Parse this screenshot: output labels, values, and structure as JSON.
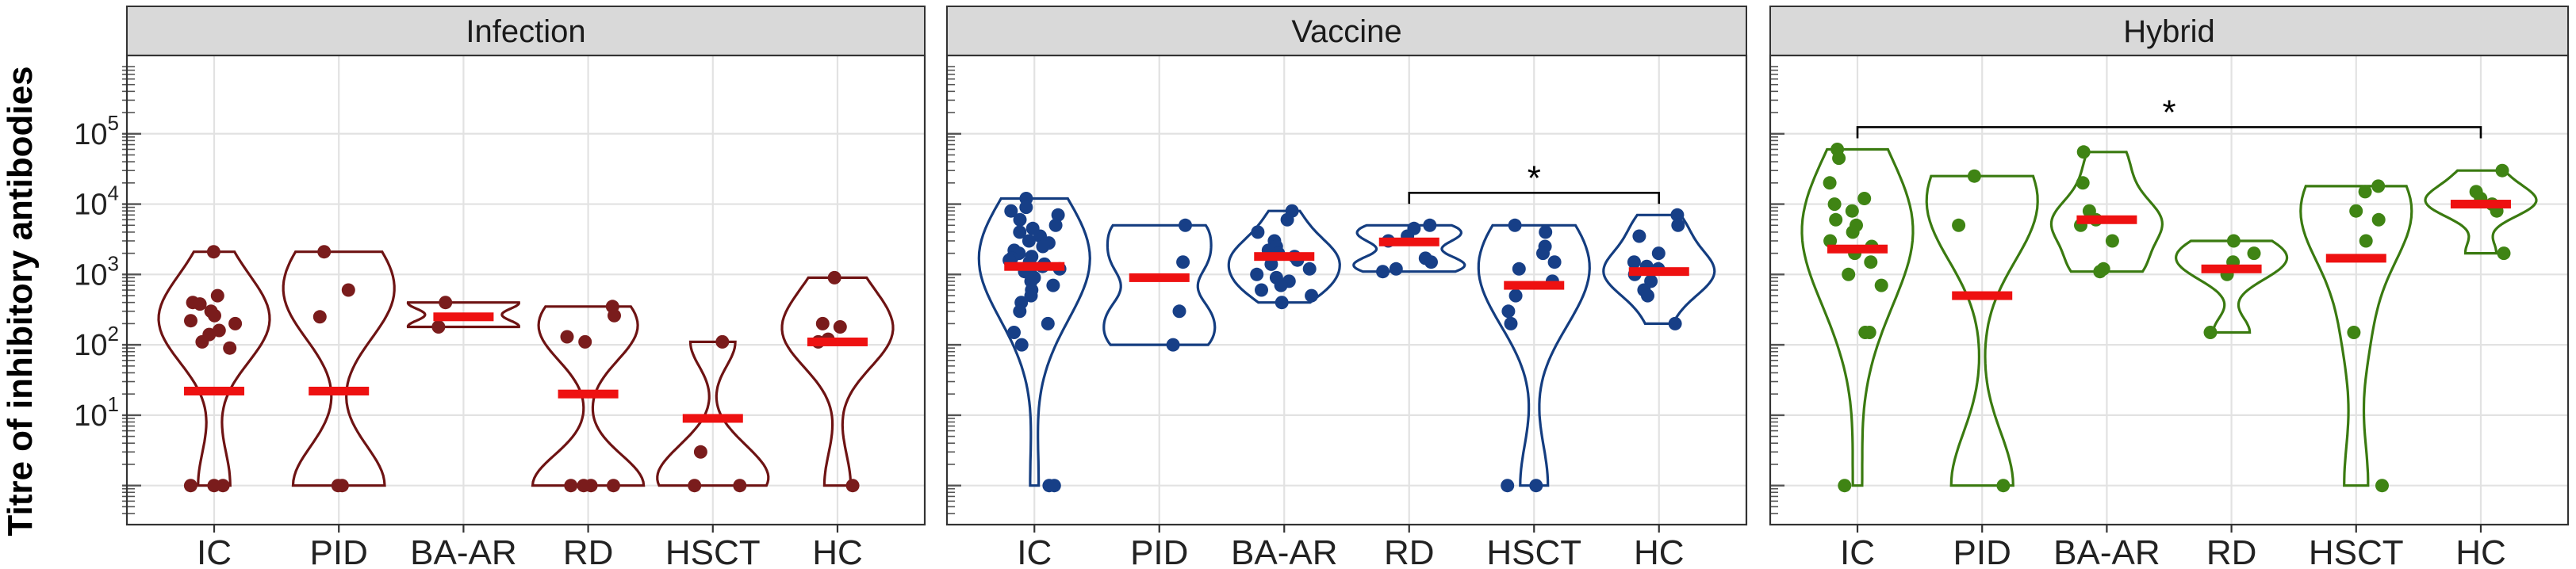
{
  "chart_data": {
    "type": "violin",
    "ylabel": "Titre of inhibitory antibodies",
    "yscale": "log10",
    "ylim": [
      0.4,
      1000000
    ],
    "yticks": [
      {
        "value": 10,
        "base": "10",
        "exp": "1"
      },
      {
        "value": 100,
        "base": "10",
        "exp": "2"
      },
      {
        "value": 1000,
        "base": "10",
        "exp": "3"
      },
      {
        "value": 10000,
        "base": "10",
        "exp": "4"
      },
      {
        "value": 100000,
        "base": "10",
        "exp": "5"
      }
    ],
    "categories": [
      "IC",
      "PID",
      "BA-AR",
      "RD",
      "HSCT",
      "HC"
    ],
    "median_color": "#ee1111",
    "panels": [
      {
        "title": "Infection",
        "color": "#6e1313",
        "point_color": "#7a1c1c",
        "groups": [
          {
            "category": "IC",
            "median": 22,
            "points": [
              2100,
              500,
              400,
              380,
              300,
              260,
              220,
              200,
              160,
              140,
              110,
              90,
              1,
              1,
              1
            ]
          },
          {
            "category": "PID",
            "median": 22,
            "points": [
              2100,
              600,
              250,
              1,
              1
            ]
          },
          {
            "category": "BA-AR",
            "median": 250,
            "points": [
              400,
              180
            ]
          },
          {
            "category": "RD",
            "median": 20,
            "points": [
              350,
              260,
              130,
              110,
              1,
              1,
              1,
              1
            ]
          },
          {
            "category": "HSCT",
            "median": 9,
            "points": [
              110,
              3,
              1,
              1
            ]
          },
          {
            "category": "HC",
            "median": 110,
            "points": [
              900,
              200,
              180,
              120,
              110,
              1
            ]
          }
        ],
        "significance": []
      },
      {
        "title": "Vaccine",
        "color": "#143d80",
        "point_color": "#173f87",
        "groups": [
          {
            "category": "IC",
            "median": 1300,
            "points": [
              12000,
              9000,
              8000,
              7000,
              6000,
              5000,
              4500,
              4000,
              3500,
              3000,
              2800,
              2500,
              2200,
              2000,
              1800,
              1700,
              1600,
              1500,
              1400,
              1300,
              1200,
              1100,
              1000,
              900,
              800,
              700,
              600,
              500,
              400,
              300,
              200,
              150,
              100,
              1,
              1
            ]
          },
          {
            "category": "PID",
            "median": 900,
            "points": [
              5000,
              1500,
              300,
              100
            ]
          },
          {
            "category": "BA-AR",
            "median": 1800,
            "points": [
              8000,
              6000,
              4000,
              3000,
              2500,
              2200,
              2000,
              1800,
              1600,
              1400,
              1200,
              1000,
              900,
              800,
              700,
              600,
              500,
              400
            ]
          },
          {
            "category": "RD",
            "median": 2900,
            "points": [
              5000,
              4500,
              3500,
              3000,
              1700,
              1500,
              1200,
              1100
            ]
          },
          {
            "category": "HSCT",
            "median": 700,
            "points": [
              5000,
              4000,
              2500,
              2000,
              1500,
              1200,
              800,
              500,
              300,
              200,
              1,
              1
            ]
          },
          {
            "category": "HC",
            "median": 1100,
            "points": [
              7000,
              5000,
              3500,
              2000,
              1500,
              1300,
              1200,
              1000,
              800,
              600,
              500,
              200
            ]
          }
        ],
        "significance": [
          {
            "from": "RD",
            "to": "HC",
            "label": "*"
          }
        ]
      },
      {
        "title": "Hybrid",
        "color": "#3a7a10",
        "point_color": "#3f8414",
        "groups": [
          {
            "category": "IC",
            "median": 2300,
            "points": [
              60000,
              45000,
              20000,
              12000,
              10000,
              8000,
              6000,
              5000,
              4000,
              3000,
              2500,
              2000,
              1500,
              1000,
              700,
              150,
              150,
              1
            ]
          },
          {
            "category": "PID",
            "median": 500,
            "points": [
              25000,
              5000,
              1
            ]
          },
          {
            "category": "BA-AR",
            "median": 6000,
            "points": [
              55000,
              20000,
              8000,
              6000,
              5000,
              3000,
              1200,
              1100
            ]
          },
          {
            "category": "RD",
            "median": 1200,
            "points": [
              3000,
              2000,
              1500,
              1000,
              150
            ]
          },
          {
            "category": "HSCT",
            "median": 1700,
            "points": [
              18000,
              15000,
              8000,
              6000,
              3000,
              150,
              1
            ]
          },
          {
            "category": "HC",
            "median": 10000,
            "points": [
              30000,
              15000,
              12000,
              10000,
              8000,
              2000
            ]
          }
        ],
        "significance": [
          {
            "from": "IC",
            "to": "HC",
            "label": "*"
          }
        ]
      }
    ]
  }
}
